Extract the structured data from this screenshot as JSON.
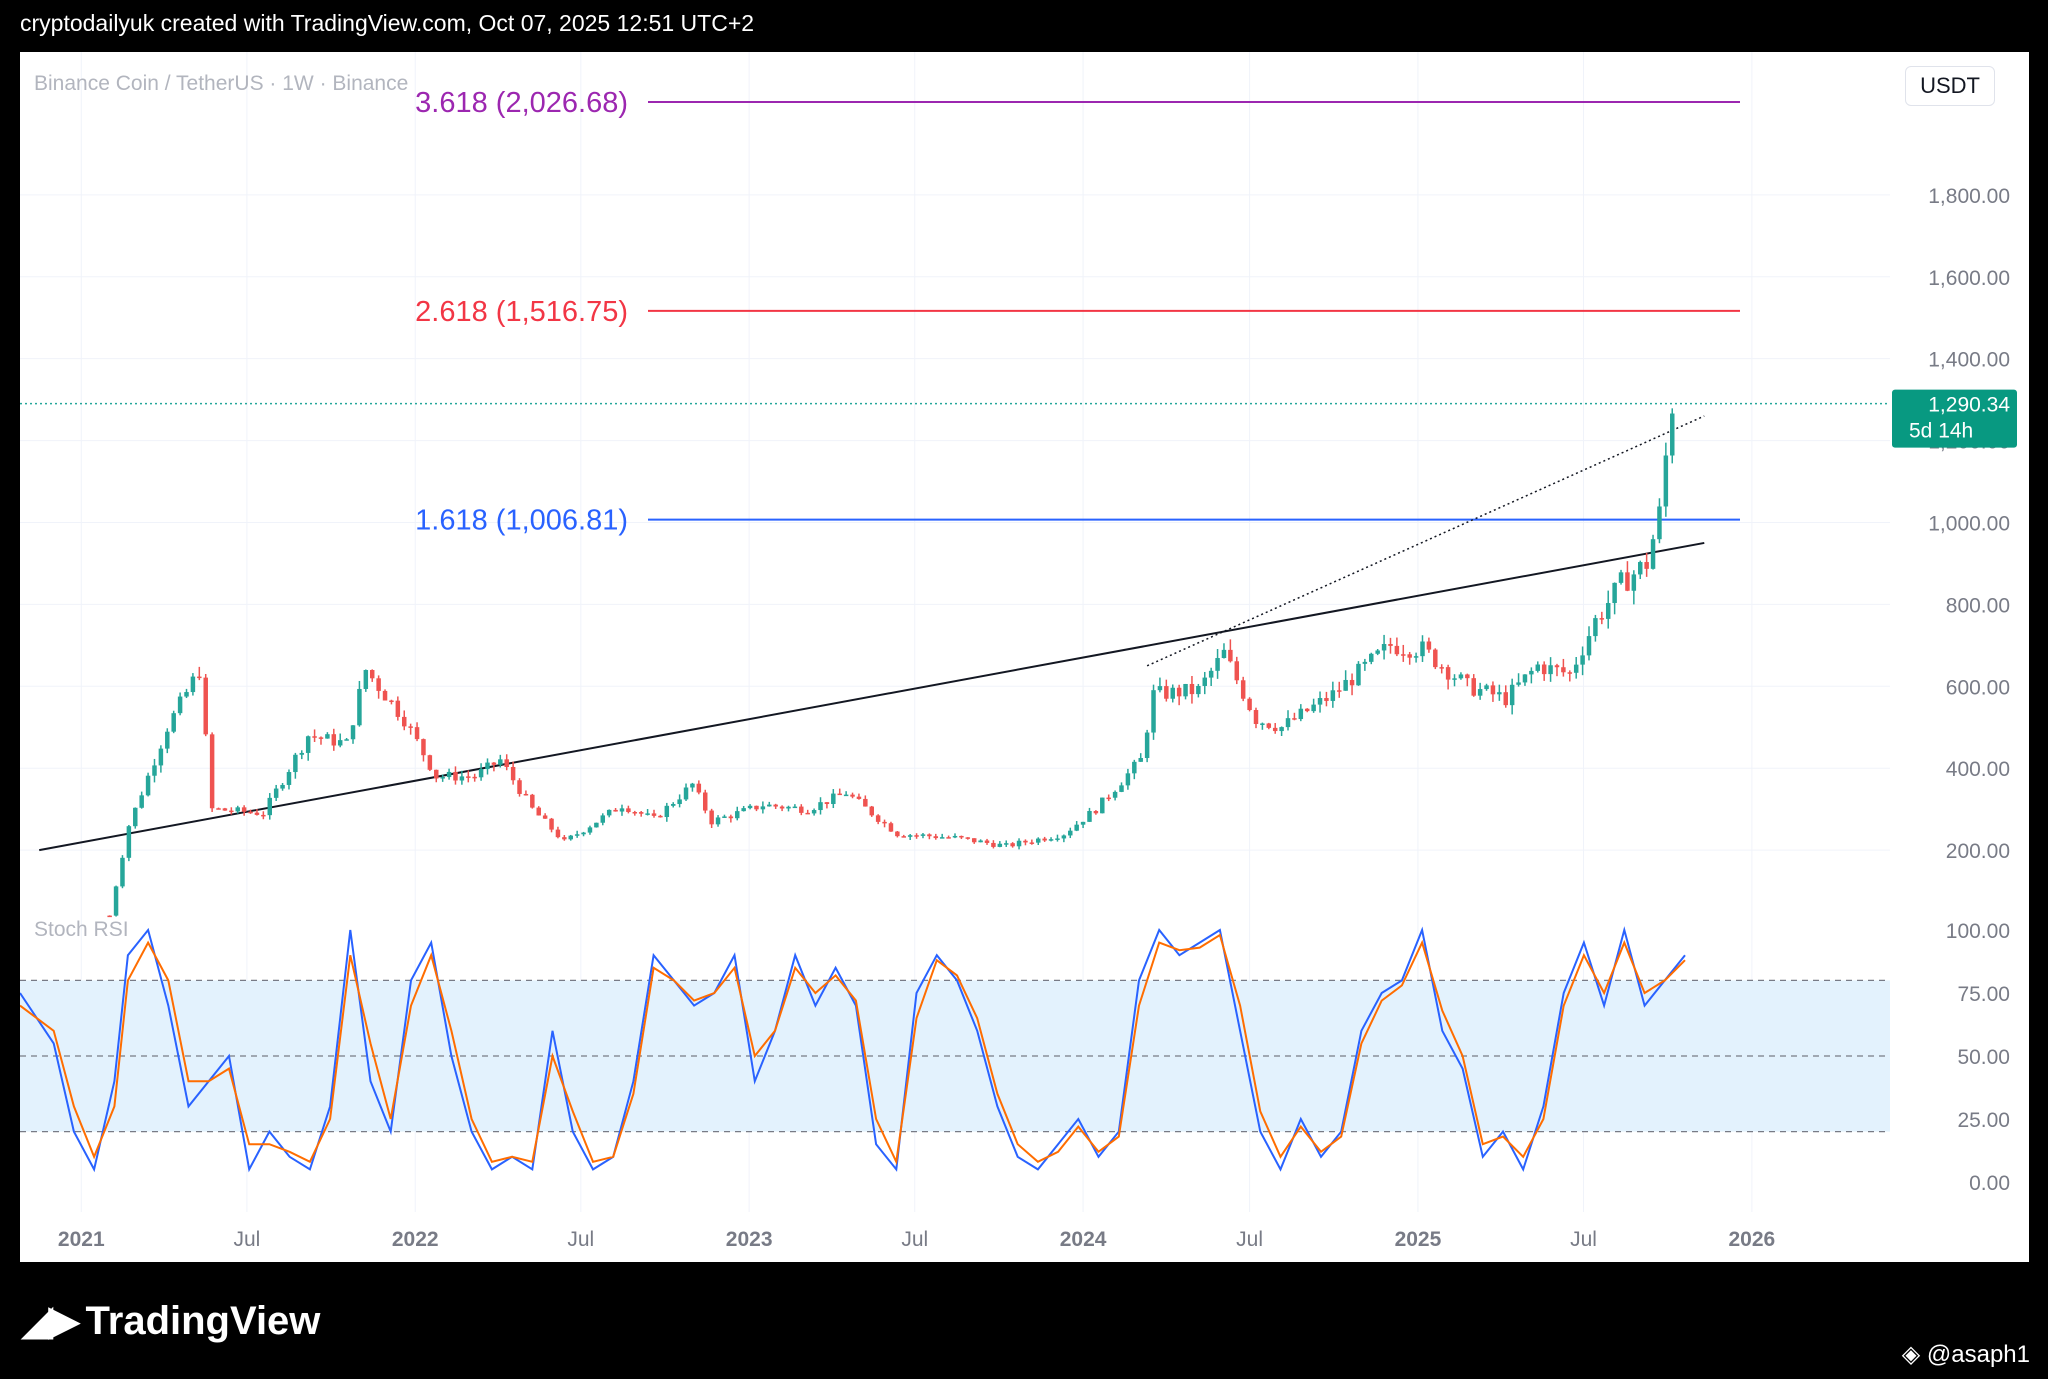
{
  "header": {
    "text": "cryptodailyuk created with TradingView.com, Oct 07, 2025 12:51 UTC+2"
  },
  "symbol_title": "Binance Coin / TetherUS · 1W · Binance",
  "currency_button": "USDT",
  "price_label": {
    "value": "1,290.34",
    "countdown": "5d 14h"
  },
  "indicator_title": "Stoch RSI",
  "footer": {
    "brand": "TradingView",
    "user": "@asaph1"
  },
  "colors": {
    "up": "#26a69a",
    "down": "#ef5350",
    "fib3618": "#9c27b0",
    "fib2618": "#f23645",
    "fib1618": "#2962ff",
    "k": "#2962ff",
    "d": "#ff6d00",
    "band": "#e3f2fd"
  },
  "chart_data": [
    {
      "type": "candlestick",
      "ylim": [
        0,
        2100
      ],
      "y_ticks": [
        "200.00",
        "400.00",
        "600.00",
        "800.00",
        "1,000.00",
        "1,200.00",
        "1,400.00",
        "1,600.00",
        "1,800.00"
      ],
      "x_ticks": [
        "2021",
        "Jul",
        "2022",
        "Jul",
        "2023",
        "Jul",
        "2024",
        "Jul",
        "2025",
        "Jul",
        "2026"
      ],
      "fib_levels": [
        {
          "label": "3.618 (2,026.68)",
          "value": 2026.68
        },
        {
          "label": "2.618 (1,516.75)",
          "value": 1516.75
        },
        {
          "label": "1.618 (1,006.81)",
          "value": 1006.81
        }
      ],
      "last_price": 1290.34,
      "close_path": [
        [
          "2021-02-01",
          40
        ],
        [
          "2021-02-22",
          260
        ],
        [
          "2021-04-05",
          500
        ],
        [
          "2021-05-10",
          640
        ],
        [
          "2021-05-24",
          300
        ],
        [
          "2021-07-19",
          290
        ],
        [
          "2021-09-06",
          480
        ],
        [
          "2021-10-18",
          460
        ],
        [
          "2021-11-08",
          640
        ],
        [
          "2021-12-20",
          520
        ],
        [
          "2022-01-24",
          380
        ],
        [
          "2022-03-07",
          380
        ],
        [
          "2022-04-04",
          420
        ],
        [
          "2022-05-09",
          300
        ],
        [
          "2022-06-13",
          220
        ],
        [
          "2022-08-15",
          310
        ],
        [
          "2022-09-19",
          275
        ],
        [
          "2022-10-31",
          360
        ],
        [
          "2022-11-21",
          270
        ],
        [
          "2023-01-16",
          310
        ],
        [
          "2023-03-06",
          300
        ],
        [
          "2023-04-17",
          340
        ],
        [
          "2023-06-12",
          240
        ],
        [
          "2023-08-14",
          230
        ],
        [
          "2023-10-09",
          210
        ],
        [
          "2023-12-11",
          240
        ],
        [
          "2024-01-15",
          300
        ],
        [
          "2024-03-04",
          420
        ],
        [
          "2024-03-18",
          580
        ],
        [
          "2024-05-06",
          590
        ],
        [
          "2024-06-03",
          680
        ],
        [
          "2024-07-08",
          520
        ],
        [
          "2024-08-05",
          500
        ],
        [
          "2024-09-30",
          580
        ],
        [
          "2024-12-02",
          700
        ],
        [
          "2025-01-06",
          690
        ],
        [
          "2025-02-24",
          600
        ],
        [
          "2025-04-07",
          570
        ],
        [
          "2025-05-12",
          650
        ],
        [
          "2025-06-16",
          630
        ],
        [
          "2025-07-14",
          760
        ],
        [
          "2025-08-11",
          850
        ],
        [
          "2025-09-08",
          900
        ],
        [
          "2025-09-22",
          1020
        ],
        [
          "2025-09-29",
          1160
        ],
        [
          "2025-10-06",
          1290
        ]
      ],
      "trendlines": [
        {
          "from": [
            "2020-11-16",
            200
          ],
          "to": [
            "2025-11-10",
            950
          ],
          "style": "solid"
        },
        {
          "from": [
            "2024-03-11",
            650
          ],
          "to": [
            "2025-11-10",
            1260
          ],
          "style": "dotted"
        }
      ]
    },
    {
      "type": "line",
      "title": "Stoch RSI",
      "ylim": [
        0,
        100
      ],
      "y_ticks": [
        "100.00",
        "75.00",
        "50.00",
        "25.00",
        "0.00"
      ],
      "bands": [
        80,
        50,
        20
      ],
      "series": [
        {
          "name": "K",
          "values": [
            [
              0,
              75
            ],
            [
              5,
              55
            ],
            [
              8,
              20
            ],
            [
              11,
              5
            ],
            [
              14,
              40
            ],
            [
              16,
              90
            ],
            [
              19,
              100
            ],
            [
              22,
              70
            ],
            [
              25,
              30
            ],
            [
              28,
              40
            ],
            [
              31,
              50
            ],
            [
              34,
              5
            ],
            [
              37,
              20
            ],
            [
              40,
              10
            ],
            [
              43,
              5
            ],
            [
              46,
              30
            ],
            [
              49,
              100
            ],
            [
              52,
              40
            ],
            [
              55,
              20
            ],
            [
              58,
              80
            ],
            [
              61,
              95
            ],
            [
              64,
              50
            ],
            [
              67,
              20
            ],
            [
              70,
              5
            ],
            [
              73,
              10
            ],
            [
              76,
              5
            ],
            [
              79,
              60
            ],
            [
              82,
              20
            ],
            [
              85,
              5
            ],
            [
              88,
              10
            ],
            [
              91,
              40
            ],
            [
              94,
              90
            ],
            [
              97,
              80
            ],
            [
              100,
              70
            ],
            [
              103,
              75
            ],
            [
              106,
              90
            ],
            [
              109,
              40
            ],
            [
              112,
              60
            ],
            [
              115,
              90
            ],
            [
              118,
              70
            ],
            [
              121,
              85
            ],
            [
              124,
              70
            ],
            [
              127,
              15
            ],
            [
              130,
              5
            ],
            [
              133,
              75
            ],
            [
              136,
              90
            ],
            [
              139,
              80
            ],
            [
              142,
              60
            ],
            [
              145,
              30
            ],
            [
              148,
              10
            ],
            [
              151,
              5
            ],
            [
              154,
              15
            ],
            [
              157,
              25
            ],
            [
              160,
              10
            ],
            [
              163,
              20
            ],
            [
              166,
              80
            ],
            [
              169,
              100
            ],
            [
              172,
              90
            ],
            [
              175,
              95
            ],
            [
              178,
              100
            ],
            [
              181,
              60
            ],
            [
              184,
              20
            ],
            [
              187,
              5
            ],
            [
              190,
              25
            ],
            [
              193,
              10
            ],
            [
              196,
              20
            ],
            [
              199,
              60
            ],
            [
              202,
              75
            ],
            [
              205,
              80
            ],
            [
              208,
              100
            ],
            [
              211,
              60
            ],
            [
              214,
              45
            ],
            [
              217,
              10
            ],
            [
              220,
              20
            ],
            [
              223,
              5
            ],
            [
              226,
              30
            ],
            [
              229,
              75
            ],
            [
              232,
              95
            ],
            [
              235,
              70
            ],
            [
              238,
              100
            ],
            [
              241,
              70
            ],
            [
              244,
              80
            ],
            [
              247,
              90
            ]
          ]
        },
        {
          "name": "D",
          "values": [
            [
              0,
              70
            ],
            [
              5,
              60
            ],
            [
              8,
              30
            ],
            [
              11,
              10
            ],
            [
              14,
              30
            ],
            [
              16,
              80
            ],
            [
              19,
              95
            ],
            [
              22,
              80
            ],
            [
              25,
              40
            ],
            [
              28,
              40
            ],
            [
              31,
              45
            ],
            [
              34,
              15
            ],
            [
              37,
              15
            ],
            [
              40,
              12
            ],
            [
              43,
              8
            ],
            [
              46,
              25
            ],
            [
              49,
              90
            ],
            [
              52,
              55
            ],
            [
              55,
              25
            ],
            [
              58,
              70
            ],
            [
              61,
              90
            ],
            [
              64,
              60
            ],
            [
              67,
              25
            ],
            [
              70,
              8
            ],
            [
              73,
              10
            ],
            [
              76,
              8
            ],
            [
              79,
              50
            ],
            [
              82,
              28
            ],
            [
              85,
              8
            ],
            [
              88,
              10
            ],
            [
              91,
              35
            ],
            [
              94,
              85
            ],
            [
              97,
              80
            ],
            [
              100,
              72
            ],
            [
              103,
              75
            ],
            [
              106,
              85
            ],
            [
              109,
              50
            ],
            [
              112,
              60
            ],
            [
              115,
              85
            ],
            [
              118,
              75
            ],
            [
              121,
              82
            ],
            [
              124,
              72
            ],
            [
              127,
              25
            ],
            [
              130,
              8
            ],
            [
              133,
              65
            ],
            [
              136,
              88
            ],
            [
              139,
              82
            ],
            [
              142,
              65
            ],
            [
              145,
              35
            ],
            [
              148,
              15
            ],
            [
              151,
              8
            ],
            [
              154,
              12
            ],
            [
              157,
              22
            ],
            [
              160,
              12
            ],
            [
              163,
              18
            ],
            [
              166,
              70
            ],
            [
              169,
              95
            ],
            [
              172,
              92
            ],
            [
              175,
              93
            ],
            [
              178,
              98
            ],
            [
              181,
              70
            ],
            [
              184,
              28
            ],
            [
              187,
              10
            ],
            [
              190,
              22
            ],
            [
              193,
              12
            ],
            [
              196,
              18
            ],
            [
              199,
              55
            ],
            [
              202,
              72
            ],
            [
              205,
              78
            ],
            [
              208,
              95
            ],
            [
              211,
              68
            ],
            [
              214,
              50
            ],
            [
              217,
              15
            ],
            [
              220,
              18
            ],
            [
              223,
              10
            ],
            [
              226,
              25
            ],
            [
              229,
              70
            ],
            [
              232,
              90
            ],
            [
              235,
              75
            ],
            [
              238,
              95
            ],
            [
              241,
              75
            ],
            [
              244,
              80
            ],
            [
              247,
              88
            ]
          ]
        }
      ]
    }
  ]
}
